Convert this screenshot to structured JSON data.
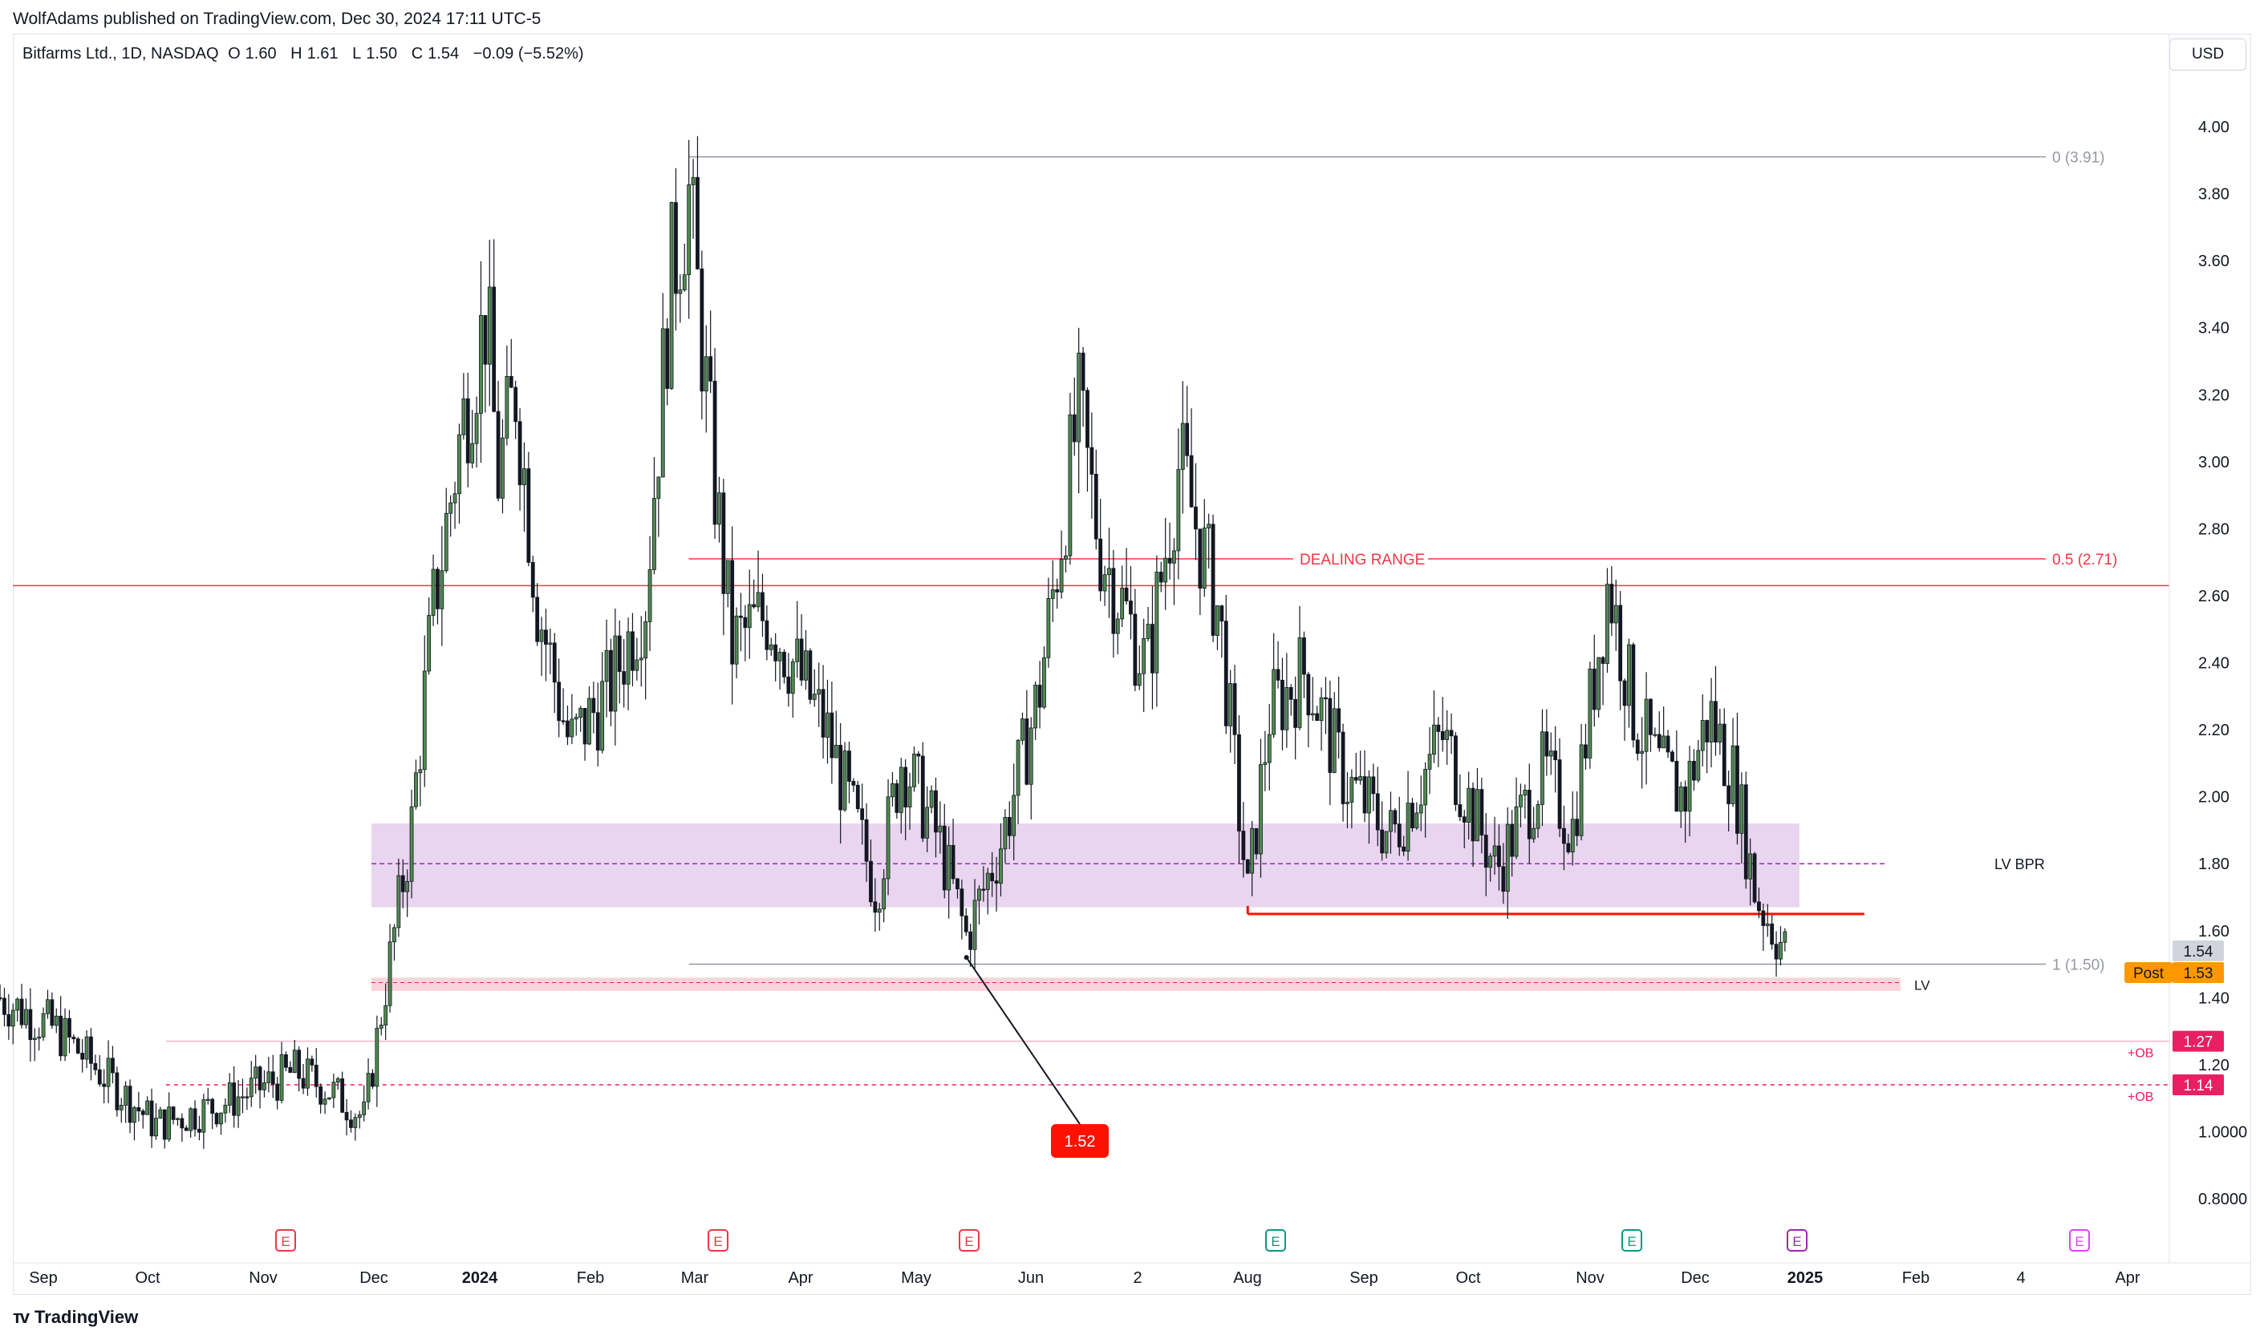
{
  "header": {
    "published": "WolfAdams published on TradingView.com, Dec 30, 2024 17:11 UTC-5"
  },
  "legend": {
    "symbol": "Bitfarms Ltd., 1D, NASDAQ",
    "open_label": "O",
    "open": "1.60",
    "high_label": "H",
    "high": "1.61",
    "low_label": "L",
    "low": "1.50",
    "close_label": "C",
    "close": "1.54",
    "change": "−0.09 (−5.52%)"
  },
  "currency": "USD",
  "footer": {
    "brand": "TradingView"
  },
  "colors": {
    "up": "#4f8a4f",
    "down": "#131722",
    "dealing": "#f23645",
    "fib": "#9598a1",
    "zone_fill": "#e9d5ef",
    "zone_line": "#9c27b0",
    "ob": "#e91e63",
    "lv_fill": "#fbd3dc",
    "post": "#ff9800",
    "callout": "#ff1100"
  },
  "chart_data": {
    "type": "candlestick",
    "title": "Bitfarms Ltd., 1D, NASDAQ",
    "ylim": [
      0.7,
      4.1
    ],
    "x_ticks": [
      "Sep",
      "Oct",
      "Nov",
      "Dec",
      "2024",
      "Feb",
      "Mar",
      "Apr",
      "May",
      "Jun",
      "2",
      "Aug",
      "Sep",
      "Oct",
      "Nov",
      "Dec",
      "2025",
      "Feb",
      "4",
      "Apr"
    ],
    "y_ticks": [
      "4.00",
      "3.80",
      "3.60",
      "3.40",
      "3.20",
      "3.00",
      "2.80",
      "2.60",
      "2.40",
      "2.20",
      "2.00",
      "1.80",
      "1.60",
      "1.40",
      "1.20",
      "1.0000",
      "0.8000"
    ],
    "annotations": {
      "fib_0": "0 (3.91)",
      "fib_half": "0.5 (2.71)",
      "fib_1": "1 (1.50)",
      "dealing_range": "DEALING RANGE",
      "lv_bpr": "LV BPR",
      "lv": "LV",
      "ob_label": "+OB",
      "callout": "1.52"
    },
    "price_tags": {
      "last": "1.54",
      "post_label": "Post",
      "post": "1.53",
      "ob_upper": "1.27",
      "ob_lower": "1.14"
    },
    "levels": {
      "fib_0": 3.91,
      "fib_half": 2.71,
      "fib_1": 1.5,
      "dealing_line": 2.63,
      "zone_top": 1.92,
      "zone_bottom": 1.67,
      "zone_mid": 1.8,
      "red_support": 1.65,
      "lv_top": 1.46,
      "lv_bottom": 1.42,
      "ob_upper": 1.27,
      "ob_lower": 1.14,
      "callout_low": 1.52
    },
    "events": [
      "E",
      "E",
      "E",
      "E",
      "E",
      "E",
      "E"
    ],
    "anchors": [
      [
        "2023-08-20",
        1.4
      ],
      [
        "2023-09-05",
        1.3
      ],
      [
        "2023-10-02",
        1.02
      ],
      [
        "2023-10-20",
        1.08
      ],
      [
        "2023-11-10",
        1.18
      ],
      [
        "2023-11-20",
        1.12
      ],
      [
        "2023-11-29",
        1.04
      ],
      [
        "2023-12-05",
        1.44
      ],
      [
        "2023-12-12",
        1.9
      ],
      [
        "2023-12-18",
        2.55
      ],
      [
        "2023-12-26",
        3.1
      ],
      [
        "2024-01-02",
        3.45
      ],
      [
        "2024-01-05",
        2.95
      ],
      [
        "2024-01-10",
        3.22
      ],
      [
        "2024-01-16",
        2.58
      ],
      [
        "2024-01-25",
        2.15
      ],
      [
        "2024-02-05",
        2.32
      ],
      [
        "2024-02-15",
        2.6
      ],
      [
        "2024-02-22",
        3.55
      ],
      [
        "2024-02-27",
        3.8
      ],
      [
        "2024-03-05",
        2.95
      ],
      [
        "2024-03-10",
        2.45
      ],
      [
        "2024-03-20",
        2.55
      ],
      [
        "2024-04-05",
        2.2
      ],
      [
        "2024-04-19",
        1.72
      ],
      [
        "2024-04-26",
        2.12
      ],
      [
        "2024-05-06",
        1.88
      ],
      [
        "2024-05-14",
        1.58
      ],
      [
        "2024-05-24",
        1.88
      ],
      [
        "2024-06-03",
        2.3
      ],
      [
        "2024-06-14",
        3.15
      ],
      [
        "2024-06-20",
        2.75
      ],
      [
        "2024-07-03",
        2.38
      ],
      [
        "2024-07-12",
        3.0
      ],
      [
        "2024-07-23",
        2.55
      ],
      [
        "2024-07-31",
        1.7
      ],
      [
        "2024-08-06",
        2.25
      ],
      [
        "2024-08-16",
        2.38
      ],
      [
        "2024-08-27",
        2.05
      ],
      [
        "2024-09-09",
        1.88
      ],
      [
        "2024-09-23",
        2.18
      ],
      [
        "2024-10-08",
        1.78
      ],
      [
        "2024-10-21",
        2.08
      ],
      [
        "2024-10-29",
        1.9
      ],
      [
        "2024-11-08",
        2.65
      ],
      [
        "2024-11-15",
        2.25
      ],
      [
        "2024-11-22",
        2.08
      ],
      [
        "2024-11-29",
        2.0
      ],
      [
        "2024-12-06",
        2.25
      ],
      [
        "2024-12-13",
        2.05
      ],
      [
        "2024-12-19",
        1.7
      ],
      [
        "2024-12-27",
        1.54
      ]
    ]
  }
}
